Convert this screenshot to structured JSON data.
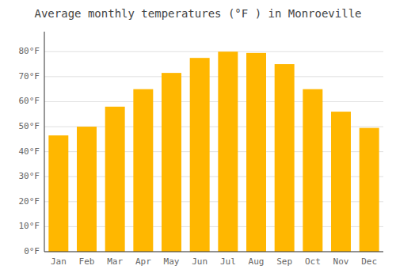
{
  "chart_data": {
    "type": "bar",
    "title": "Average monthly temperatures (°F ) in Monroeville",
    "categories": [
      "Jan",
      "Feb",
      "Mar",
      "Apr",
      "May",
      "Jun",
      "Jul",
      "Aug",
      "Sep",
      "Oct",
      "Nov",
      "Dec"
    ],
    "values": [
      46.5,
      50.0,
      58.0,
      65.0,
      71.5,
      77.5,
      80.0,
      79.5,
      75.0,
      65.0,
      56.0,
      49.5
    ],
    "color": "#FFB700",
    "ylim": [
      0,
      88
    ],
    "yticks": [
      {
        "value": 0,
        "label": "0°F"
      },
      {
        "value": 10,
        "label": "10°F"
      },
      {
        "value": 20,
        "label": "20°F"
      },
      {
        "value": 30,
        "label": "30°F"
      },
      {
        "value": 40,
        "label": "40°F"
      },
      {
        "value": 50,
        "label": "50°F"
      },
      {
        "value": 60,
        "label": "60°F"
      },
      {
        "value": 70,
        "label": "70°F"
      },
      {
        "value": 80,
        "label": "80°F"
      }
    ],
    "grid": true
  }
}
